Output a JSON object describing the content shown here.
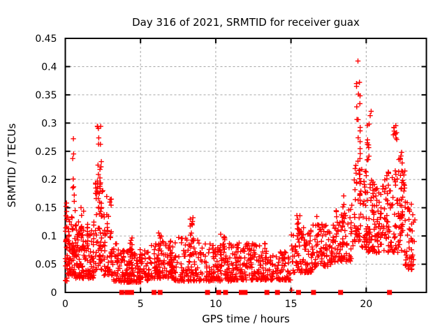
{
  "chart_data": {
    "type": "scatter",
    "title": "Day 316 of 2021, SRMTID for receiver guax",
    "xlabel": "GPS time / hours",
    "ylabel": "SRMTID / TECUs",
    "xlim": [
      0,
      24
    ],
    "ylim": [
      0,
      0.45
    ],
    "xticks": [
      {
        "v": 0,
        "label": "0"
      },
      {
        "v": 5,
        "label": "5"
      },
      {
        "v": 10,
        "label": "10"
      },
      {
        "v": 15,
        "label": "15"
      },
      {
        "v": 20,
        "label": "20"
      }
    ],
    "yticks": [
      {
        "v": 0,
        "label": "0"
      },
      {
        "v": 0.05,
        "label": "0.05"
      },
      {
        "v": 0.1,
        "label": "0.1"
      },
      {
        "v": 0.15,
        "label": "0.15"
      },
      {
        "v": 0.2,
        "label": "0.2"
      },
      {
        "v": 0.25,
        "label": "0.25"
      },
      {
        "v": 0.3,
        "label": "0.3"
      },
      {
        "v": 0.35,
        "label": "0.35"
      },
      {
        "v": 0.4,
        "label": "0.4"
      },
      {
        "v": 0.45,
        "label": "0.45"
      }
    ],
    "grid": true,
    "legend": "none",
    "marker": {
      "shape": "plus",
      "size": 7,
      "color": "#ff0000"
    },
    "grid_color": "#a6a6a6",
    "axis_color": "#000000",
    "zero_marker": {
      "shape": "filled-square",
      "size": 7,
      "color": "#ff0000"
    },
    "zero_marker_hours": [
      3.75,
      4.1,
      4.4,
      5.9,
      6.3,
      9.45,
      10.2,
      10.65,
      11.7,
      11.95,
      13.4,
      14.1,
      15.5,
      16.5,
      18.3,
      21.55
    ],
    "outlier_points": [
      [
        19.45,
        0.41
      ],
      [
        15.05,
        0.004
      ]
    ],
    "point_clusters": [
      {
        "x0": 0.0,
        "x1": 0.12,
        "n": 22,
        "ylo": 0.02,
        "yhi": 0.16,
        "skew": 1.5
      },
      {
        "x0": 0.1,
        "x1": 0.7,
        "n": 75,
        "ylo": 0.03,
        "yhi": 0.15,
        "skew": 1.7
      },
      {
        "x0": 0.45,
        "x1": 0.6,
        "n": 8,
        "ylo": 0.15,
        "yhi": 0.285,
        "skew": 1.0
      },
      {
        "x0": 0.7,
        "x1": 1.9,
        "n": 135,
        "ylo": 0.025,
        "yhi": 0.125,
        "skew": 1.8
      },
      {
        "x0": 1.0,
        "x1": 1.25,
        "n": 6,
        "ylo": 0.1,
        "yhi": 0.155,
        "skew": 1.0
      },
      {
        "x0": 2.0,
        "x1": 2.5,
        "n": 60,
        "ylo": 0.04,
        "yhi": 0.21,
        "skew": 1.5
      },
      {
        "x0": 2.1,
        "x1": 2.4,
        "n": 15,
        "ylo": 0.18,
        "yhi": 0.295,
        "skew": 1.0
      },
      {
        "x0": 2.5,
        "x1": 3.15,
        "n": 55,
        "ylo": 0.03,
        "yhi": 0.175,
        "skew": 1.7
      },
      {
        "x0": 3.15,
        "x1": 3.6,
        "n": 30,
        "ylo": 0.02,
        "yhi": 0.09,
        "skew": 1.6
      },
      {
        "x0": 3.6,
        "x1": 5.6,
        "n": 165,
        "ylo": 0.018,
        "yhi": 0.078,
        "skew": 1.7
      },
      {
        "x0": 4.25,
        "x1": 4.45,
        "n": 8,
        "ylo": 0.07,
        "yhi": 0.122,
        "skew": 1.0
      },
      {
        "x0": 5.6,
        "x1": 7.2,
        "n": 120,
        "ylo": 0.025,
        "yhi": 0.092,
        "skew": 1.7
      },
      {
        "x0": 6.2,
        "x1": 6.4,
        "n": 6,
        "ylo": 0.08,
        "yhi": 0.107,
        "skew": 1.0
      },
      {
        "x0": 7.2,
        "x1": 9.45,
        "n": 140,
        "ylo": 0.02,
        "yhi": 0.098,
        "skew": 1.8
      },
      {
        "x0": 8.3,
        "x1": 8.5,
        "n": 10,
        "ylo": 0.08,
        "yhi": 0.135,
        "skew": 1.0
      },
      {
        "x0": 9.5,
        "x1": 11.1,
        "n": 120,
        "ylo": 0.02,
        "yhi": 0.09,
        "skew": 1.8
      },
      {
        "x0": 10.3,
        "x1": 10.6,
        "n": 9,
        "ylo": 0.07,
        "yhi": 0.105,
        "skew": 1.0
      },
      {
        "x0": 11.1,
        "x1": 13.4,
        "n": 170,
        "ylo": 0.022,
        "yhi": 0.088,
        "skew": 1.8
      },
      {
        "x0": 11.25,
        "x1": 11.45,
        "n": 7,
        "ylo": 0.06,
        "yhi": 0.096,
        "skew": 1.0
      },
      {
        "x0": 13.4,
        "x1": 15.0,
        "n": 85,
        "ylo": 0.022,
        "yhi": 0.072,
        "skew": 1.7
      },
      {
        "x0": 15.0,
        "x1": 16.45,
        "n": 100,
        "ylo": 0.035,
        "yhi": 0.115,
        "skew": 1.6
      },
      {
        "x0": 15.35,
        "x1": 15.65,
        "n": 10,
        "ylo": 0.1,
        "yhi": 0.138,
        "skew": 1.0
      },
      {
        "x0": 16.45,
        "x1": 18.0,
        "n": 90,
        "ylo": 0.045,
        "yhi": 0.122,
        "skew": 1.6
      },
      {
        "x0": 16.7,
        "x1": 17.15,
        "n": 8,
        "ylo": 0.1,
        "yhi": 0.138,
        "skew": 1.0
      },
      {
        "x0": 18.0,
        "x1": 19.15,
        "n": 70,
        "ylo": 0.055,
        "yhi": 0.155,
        "skew": 1.5
      },
      {
        "x0": 18.4,
        "x1": 18.65,
        "n": 6,
        "ylo": 0.13,
        "yhi": 0.178,
        "skew": 1.0
      },
      {
        "x0": 19.2,
        "x1": 19.65,
        "n": 48,
        "ylo": 0.09,
        "yhi": 0.25,
        "skew": 1.3
      },
      {
        "x0": 19.35,
        "x1": 19.6,
        "n": 14,
        "ylo": 0.25,
        "yhi": 0.378,
        "skew": 1.0
      },
      {
        "x0": 19.7,
        "x1": 20.5,
        "n": 72,
        "ylo": 0.07,
        "yhi": 0.22,
        "skew": 1.5
      },
      {
        "x0": 20.05,
        "x1": 20.35,
        "n": 12,
        "ylo": 0.22,
        "yhi": 0.335,
        "skew": 1.0
      },
      {
        "x0": 20.5,
        "x1": 21.6,
        "n": 90,
        "ylo": 0.07,
        "yhi": 0.2,
        "skew": 1.4
      },
      {
        "x0": 21.35,
        "x1": 21.5,
        "n": 6,
        "ylo": 0.19,
        "yhi": 0.215,
        "skew": 1.0
      },
      {
        "x0": 21.8,
        "x1": 22.05,
        "n": 10,
        "ylo": 0.265,
        "yhi": 0.297,
        "skew": 1.0
      },
      {
        "x0": 21.6,
        "x1": 22.6,
        "n": 80,
        "ylo": 0.07,
        "yhi": 0.22,
        "skew": 1.4
      },
      {
        "x0": 22.15,
        "x1": 22.45,
        "n": 8,
        "ylo": 0.21,
        "yhi": 0.25,
        "skew": 1.0
      },
      {
        "x0": 22.6,
        "x1": 23.25,
        "n": 45,
        "ylo": 0.04,
        "yhi": 0.16,
        "skew": 1.5
      }
    ],
    "seed": 316
  }
}
